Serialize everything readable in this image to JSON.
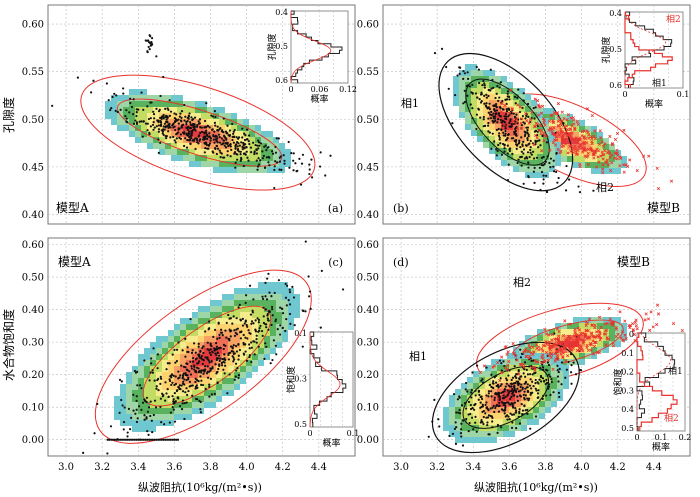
{
  "colors": {
    "red": "#e8332e",
    "black": "#111111",
    "grid": "#bdbdbd",
    "ramp": [
      "#6fc7cf",
      "#9fd6a8",
      "#58b25e",
      "#c3dc64",
      "#f6ec8c",
      "#fcd36f",
      "#f6a262",
      "#ef6f56",
      "#e63a3f"
    ]
  },
  "labels": {
    "y_top": "孔隙度",
    "y_bottom": "水合物饱和度",
    "x_left": "纵波阻抗(10⁶kg/(m²•s))",
    "x_right": "纵波阻抗(10⁶kg/(m²•s))",
    "prob": "概率"
  },
  "chart_data": [
    {
      "type": "scatter",
      "panel": "a",
      "tag": "(a)",
      "model": "模型A",
      "ylabel": "孔隙度",
      "xlim": [
        2.9,
        4.6
      ],
      "ylim": [
        0.39,
        0.62
      ],
      "yticks": [
        "0.40",
        "0.45",
        "0.50",
        "0.55",
        "0.60"
      ],
      "ellipses": [
        {
          "center": [
            3.73,
            0.487
          ],
          "rx": 0.43,
          "ry_at_center": 0.07,
          "angle_dir": [
            0.5,
            -0.052
          ],
          "fill": true,
          "stroke": "red"
        },
        {
          "center": [
            3.73,
            0.487
          ],
          "rx": 0.33,
          "ry_at_center": 0.04,
          "angle_dir": [
            0.5,
            -0.052
          ],
          "fill": false,
          "stroke": "red"
        }
      ],
      "points": {
        "center": [
          3.77,
          0.483
        ],
        "spread": [
          0.22,
          0.022
        ],
        "slope": -0.1,
        "range": [
          3.3,
          4.22
        ],
        "cluster": [
          [
            3.45,
            0.575
          ]
        ]
      },
      "inset": {
        "xticks": [
          "0",
          "0.06",
          "0.12"
        ],
        "yticks": [
          "0.4",
          "0.5",
          "0.6"
        ],
        "ylabel": "孔隙度",
        "xlabel": "概率"
      }
    },
    {
      "type": "scatter",
      "panel": "b",
      "tag": "(b)",
      "model": "模型B",
      "ylabel": "",
      "phase1": "相1",
      "phase2": "相2",
      "xlim": [
        2.9,
        4.6
      ],
      "ylim": [
        0.39,
        0.62
      ],
      "yticks": [
        "0.40",
        "0.45",
        "0.50",
        "0.55",
        "0.60"
      ],
      "ellipses": [
        {
          "center": [
            3.58,
            0.497
          ],
          "note": "相1",
          "stroke": "black"
        },
        {
          "center": [
            3.95,
            0.478
          ],
          "note": "相2",
          "stroke": "red"
        }
      ],
      "inset": {
        "xticks": [
          "0",
          "0.1"
        ],
        "yticks": [
          "0.4",
          "0.5",
          "0.6"
        ],
        "ylabel": "孔隙度",
        "xlabel": "概率",
        "series": [
          "相1",
          "相2"
        ]
      }
    },
    {
      "type": "scatter",
      "panel": "c",
      "tag": "(c)",
      "model": "模型A",
      "ylabel": "水合物饱和度",
      "xlim": [
        2.9,
        4.6
      ],
      "ylim": [
        -0.05,
        0.62
      ],
      "yticks": [
        "0.00",
        "0.10",
        "0.20",
        "0.30",
        "0.40",
        "0.50",
        "0.60"
      ],
      "xticks": [
        "3.0",
        "3.2",
        "3.4",
        "3.6",
        "3.8",
        "4.0",
        "4.2",
        "4.4"
      ],
      "xlabel": "纵波阻抗(10⁶kg/(m²•s))",
      "inset": {
        "xticks": [
          "0",
          "0.1"
        ],
        "yticks": [
          "0.1",
          "0.3",
          "0.5"
        ],
        "ylabel": "饱和度",
        "xlabel": "概率"
      }
    },
    {
      "type": "scatter",
      "panel": "d",
      "tag": "(d)",
      "model": "模型B",
      "ylabel": "",
      "phase1": "相1",
      "phase2": "相2",
      "xlim": [
        2.9,
        4.6
      ],
      "ylim": [
        -0.05,
        0.62
      ],
      "yticks": [
        "0.00",
        "0.10",
        "0.20",
        "0.30",
        "0.40",
        "0.50",
        "0.60"
      ],
      "xticks": [
        "3.0",
        "3.2",
        "3.4",
        "3.6",
        "3.8",
        "4.0",
        "4.2",
        "4.4"
      ],
      "xlabel": "纵波阻抗(10⁶kg/(m²•s))",
      "inset": {
        "xticks": [
          "0",
          "0.1",
          "0.2"
        ],
        "yticks": [
          "0",
          "0.1",
          "0.2",
          "0.3",
          "0.4",
          "0.5"
        ],
        "ylabel": "饱和度",
        "xlabel": "概率",
        "series": [
          "相1",
          "相2"
        ]
      }
    }
  ]
}
